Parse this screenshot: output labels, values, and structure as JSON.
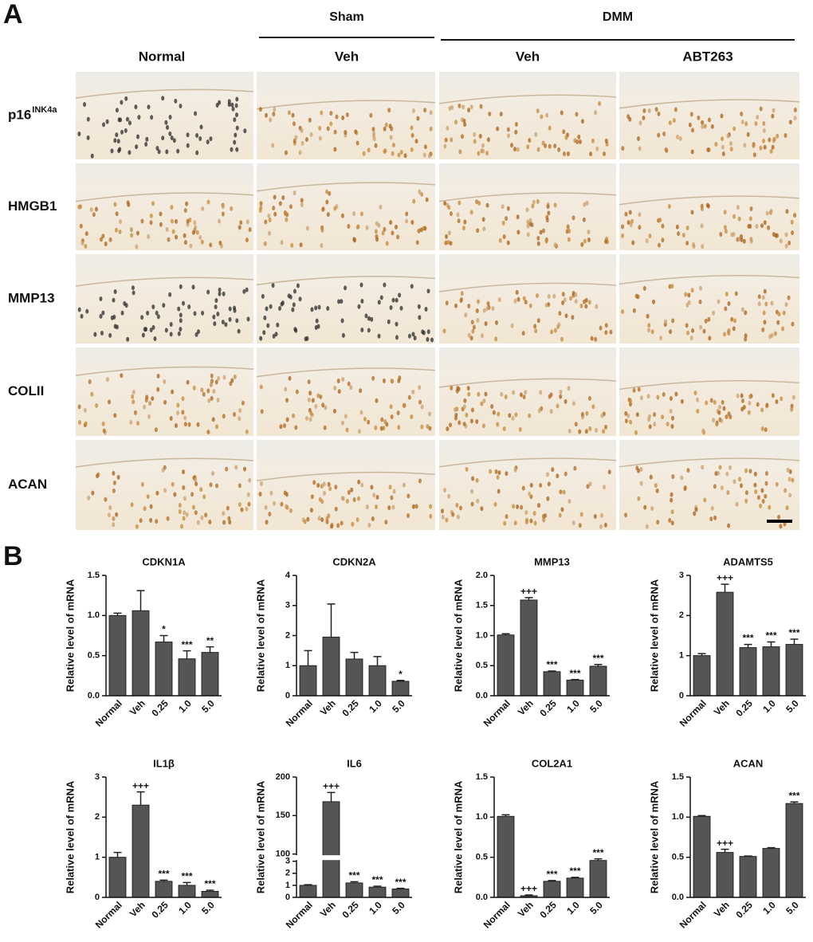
{
  "panel_a": {
    "label": "A",
    "groups": [
      "Sham",
      "DMM"
    ],
    "columns": [
      "Normal",
      "Veh",
      "Veh",
      "ABT263"
    ],
    "rows": [
      {
        "label": "p16",
        "superscript": "INK4a"
      },
      {
        "label": "HMGB1"
      },
      {
        "label": "MMP13"
      },
      {
        "label": "COLII"
      },
      {
        "label": "ACAN"
      }
    ]
  },
  "panel_b": {
    "label": "B"
  },
  "chart_data": [
    {
      "type": "bar",
      "title": "CDKN1A",
      "y_label": "Relative level of mRNA",
      "color": "#555555",
      "categories": [
        "Normal",
        "Veh",
        "0.25",
        "1.0",
        "5.0"
      ],
      "values": [
        1.0,
        1.06,
        0.67,
        0.46,
        0.54
      ],
      "errors": [
        0.03,
        0.25,
        0.08,
        0.1,
        0.07
      ],
      "annotations": [
        null,
        null,
        "*",
        "***",
        "**"
      ],
      "ylim": [
        0,
        1.5
      ],
      "yticks": [
        {
          "value": 0,
          "label": "0.0"
        },
        0.5,
        {
          "value": 1,
          "label": "1.0"
        },
        1.5
      ]
    },
    {
      "type": "bar",
      "title": "CDKN2A",
      "y_label": "Relative level of mRNA",
      "color": "#555555",
      "categories": [
        "Normal",
        "Veh",
        "0.25",
        "1.0",
        "5.0"
      ],
      "values": [
        1.0,
        1.95,
        1.22,
        1.0,
        0.48
      ],
      "errors": [
        0.5,
        1.1,
        0.22,
        0.3,
        0.03
      ],
      "annotations": [
        null,
        null,
        null,
        null,
        "*"
      ],
      "ylim": [
        0,
        4
      ],
      "yticks": [
        0,
        1,
        2,
        3,
        4
      ]
    },
    {
      "type": "bar",
      "title": "MMP13",
      "y_label": "Relative level of mRNA",
      "color": "#555555",
      "categories": [
        "Normal",
        "Veh",
        "0.25",
        "1.0",
        "5.0"
      ],
      "values": [
        1.01,
        1.59,
        0.4,
        0.26,
        0.49
      ],
      "errors": [
        0.02,
        0.04,
        0.01,
        0.01,
        0.03
      ],
      "annotations": [
        null,
        "+++",
        "***",
        "***",
        "***"
      ],
      "ylim": [
        0,
        2
      ],
      "yticks": [
        {
          "value": 0,
          "label": "0.0"
        },
        0.5,
        {
          "value": 1,
          "label": "1.0"
        },
        1.5,
        {
          "value": 2,
          "label": "2.0"
        }
      ]
    },
    {
      "type": "bar",
      "title": "ADAMTS5",
      "y_label": "Relative level of mRNA",
      "color": "#555555",
      "categories": [
        "Normal",
        "Veh",
        "0.25",
        "1.0",
        "5.0"
      ],
      "values": [
        1.0,
        2.58,
        1.2,
        1.22,
        1.28
      ],
      "errors": [
        0.05,
        0.2,
        0.08,
        0.12,
        0.13
      ],
      "annotations": [
        null,
        "+++",
        "***",
        "***",
        "***"
      ],
      "ylim": [
        0,
        3
      ],
      "yticks": [
        0,
        1,
        2,
        3
      ]
    },
    {
      "type": "bar",
      "title": "IL1β",
      "y_label": "Relative level of mRNA",
      "color": "#555555",
      "categories": [
        "Normal",
        "Veh",
        "0.25",
        "1.0",
        "5.0"
      ],
      "values": [
        1.0,
        2.3,
        0.4,
        0.3,
        0.15
      ],
      "errors": [
        0.12,
        0.33,
        0.03,
        0.07,
        0.03
      ],
      "annotations": [
        null,
        "+++",
        "***",
        "***",
        "***"
      ],
      "ylim": [
        0,
        3
      ],
      "yticks": [
        0,
        1,
        2,
        3
      ]
    },
    {
      "type": "bar",
      "title": "IL6",
      "y_label": "Relative level of mRNA",
      "color": "#555555",
      "categories": [
        "Normal",
        "Veh",
        "0.25",
        "1.0",
        "5.0"
      ],
      "values": [
        1.0,
        168,
        1.2,
        0.85,
        0.7
      ],
      "errors": [
        0.05,
        12,
        0.1,
        0.08,
        0.05
      ],
      "annotations": [
        null,
        "+++",
        "***",
        "***",
        "***"
      ],
      "ylim": [
        0,
        200
      ],
      "axis_break": [
        3,
        100
      ],
      "yticks": [
        0,
        1,
        2,
        3,
        100,
        150,
        200
      ]
    },
    {
      "type": "bar",
      "title": "COL2A1",
      "y_label": "Relative level of mRNA",
      "color": "#555555",
      "categories": [
        "Normal",
        "Veh",
        "0.25",
        "1.0",
        "5.0"
      ],
      "values": [
        1.01,
        0.02,
        0.2,
        0.24,
        0.46
      ],
      "errors": [
        0.02,
        0.01,
        0.01,
        0.01,
        0.02
      ],
      "annotations": [
        null,
        "+++",
        "***",
        "***",
        "***"
      ],
      "ylim": [
        0,
        1.5
      ],
      "yticks": [
        {
          "value": 0,
          "label": "0.0"
        },
        0.5,
        {
          "value": 1,
          "label": "1.0"
        },
        1.5
      ]
    },
    {
      "type": "bar",
      "title": "ACAN",
      "y_label": "Relative level of mRNA",
      "color": "#555555",
      "categories": [
        "Normal",
        "Veh",
        "0.25",
        "1.0",
        "5.0"
      ],
      "values": [
        1.01,
        0.56,
        0.51,
        0.61,
        1.17
      ],
      "errors": [
        0.01,
        0.04,
        0.005,
        0.01,
        0.02
      ],
      "annotations": [
        null,
        "+++",
        null,
        null,
        "***"
      ],
      "ylim": [
        0,
        1.5
      ],
      "yticks": [
        {
          "value": 0,
          "label": "0.0"
        },
        0.5,
        {
          "value": 1,
          "label": "1.0"
        },
        1.5
      ]
    }
  ]
}
